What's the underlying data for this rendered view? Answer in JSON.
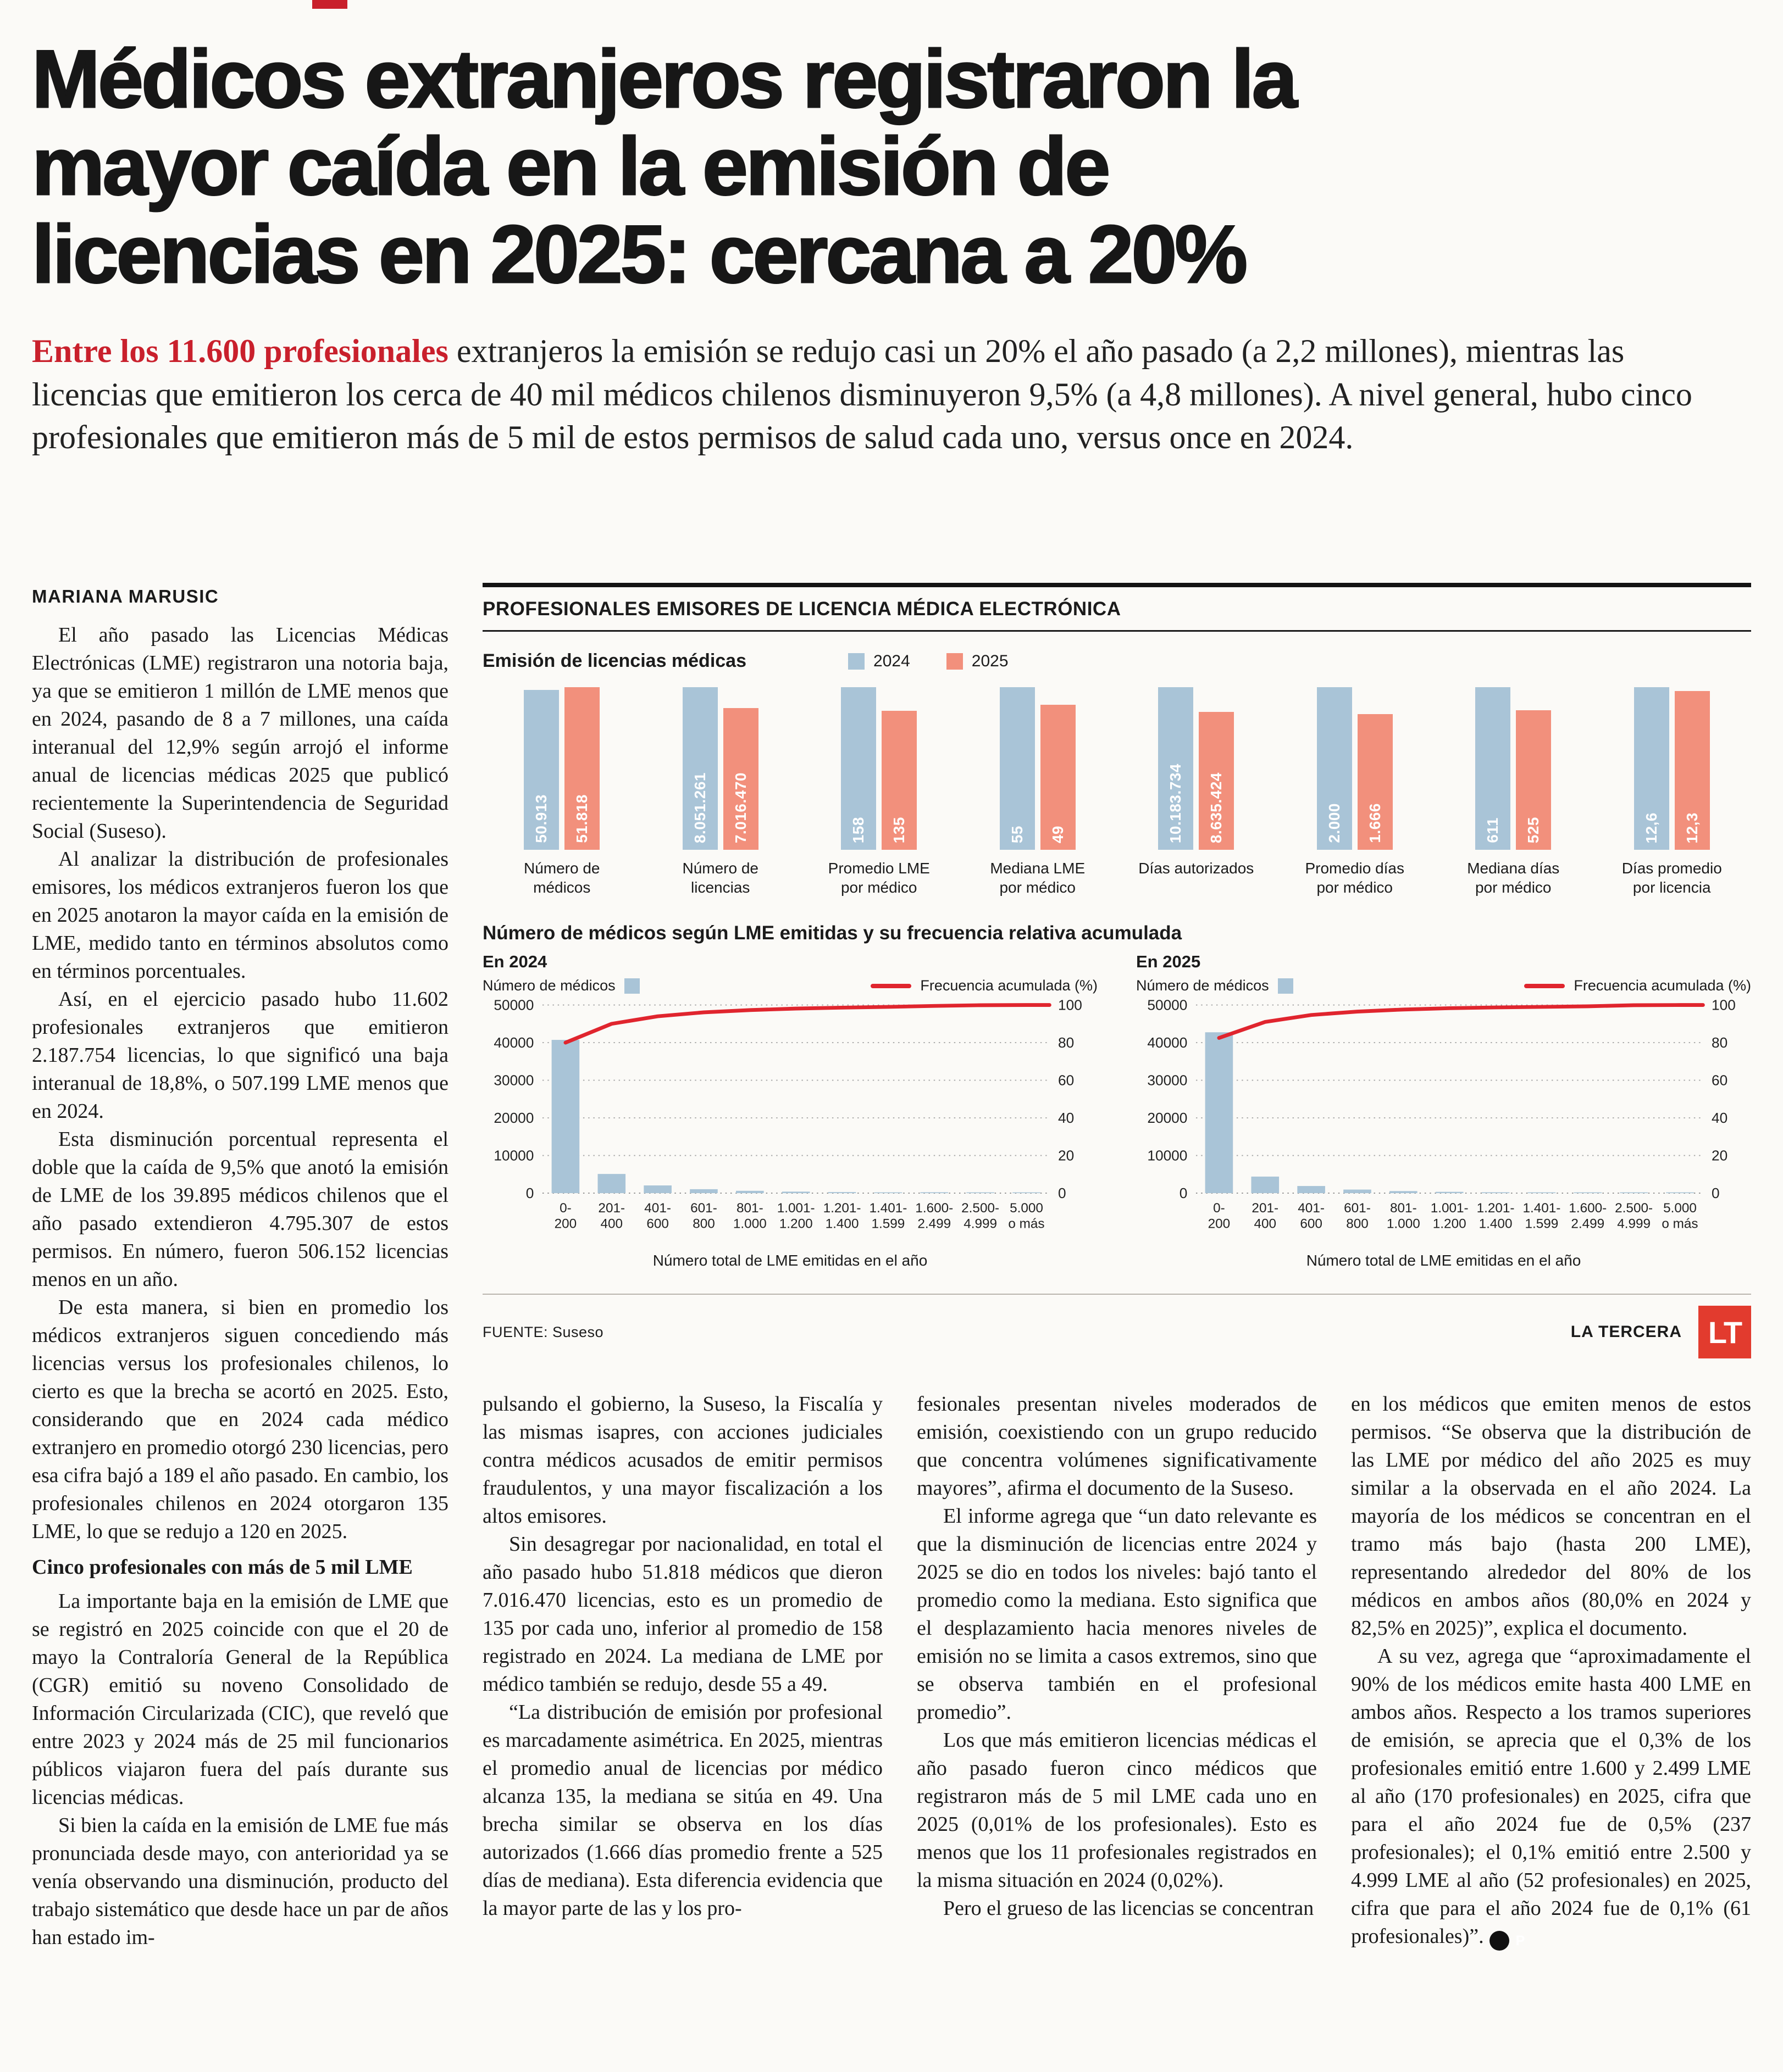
{
  "page": {
    "headline": "Médicos extranjeros registraron la mayor caída en la emisión de licencias en 2025: cercana a 20%",
    "lead_highlight": "Entre los 11.600 profesionales",
    "lead_rest": " extranjeros la emisión se redujo casi un 20% el año pasado (a 2,2 millones), mientras las licencias que emitieron los cerca de 40 mil médicos chilenos disminuyeron 9,5% (a 4,8 millones). A nivel general, hubo cinco profesionales que emitieron más de 5 mil de estos permisos de salud cada uno, versus once en 2024.",
    "byline": "MARIANA MARUSIC"
  },
  "article": {
    "col1": [
      "El año pasado las Licencias Médicas Electrónicas (LME) registraron una notoria baja, ya que se emitieron 1 millón de LME menos que en 2024, pasando de 8 a 7 millones, una caída interanual del 12,9% según arrojó el informe anual de licencias médicas 2025 que publicó recientemente la Superintendencia de Seguridad Social (Suseso).",
      "Al analizar la distribución de profesionales emisores, los médicos extranjeros fueron los que en 2025 anotaron la mayor caída en la emisión de LME, medido tanto en términos absolutos como en términos porcentuales.",
      "Así, en el ejercicio pasado hubo 11.602 profesionales extranjeros que emitieron 2.187.754 licencias, lo que significó una baja interanual de 18,8%, o 507.199 LME menos que en 2024.",
      "Esta disminución porcentual representa el doble que la caída de 9,5% que anotó la emisión de LME de los 39.895 médicos chilenos que el año pasado extendieron 4.795.307 de estos permisos. En número, fueron 506.152 licencias menos en un año.",
      "De esta manera, si bien en promedio los médicos extranjeros siguen concediendo más licencias versus los profesionales chilenos, lo cierto es que la brecha se acortó en 2025. Esto, considerando que en 2024 cada médico extranjero en promedio otorgó 230 licencias, pero esa cifra bajó a 189 el año pasado. En cambio, los profesionales chilenos en 2024 otorgaron 135 LME, lo que se redujo a 120 en 2025.",
      {
        "subhead": true,
        "text": "Cinco profesionales con más de 5 mil LME"
      },
      "La importante baja en la emisión de LME que se registró en 2025 coincide con que el 20 de mayo la Contraloría General de la República (CGR) emitió su noveno Consolidado de Información Circularizada (CIC), que reveló que entre 2023 y 2024 más de 25 mil funcionarios públicos viajaron fuera del país durante sus licencias médicas.",
      "Si bien la caída en la emisión de LME fue más pronunciada desde mayo, con anterioridad ya se venía observando una disminución, producto del trabajo sistemático que desde hace un par de años han estado im-"
    ],
    "col2": [
      {
        "noindent": true,
        "text": "pulsando el gobierno, la Suseso, la Fiscalía y las mismas isapres, con acciones judiciales contra médicos acusados de emitir permisos fraudulentos, y una mayor fiscalización a los altos emisores."
      },
      "Sin desagregar por nacionalidad, en total el año pasado hubo 51.818 médicos que dieron 7.016.470 licencias, esto es un promedio de 135 por cada uno, inferior al promedio de 158 registrado en 2024. La mediana de LME por médico también se redujo, desde 55 a 49.",
      "“La distribución de emisión por profesional es marcadamente asimétrica. En 2025, mientras el promedio anual de licencias por médico alcanza 135, la mediana se sitúa en 49. Una brecha similar se observa en los días autorizados (1.666 días promedio frente a 525 días de mediana). Esta diferencia evidencia que la mayor parte de las y los pro-"
    ],
    "col3": [
      {
        "noindent": true,
        "text": "fesionales presentan niveles moderados de emisión, coexistiendo con un grupo reducido que concentra volúmenes significativamente mayores”, afirma el documento de la Suseso."
      },
      "El informe agrega que “un dato relevante es que la disminución de licencias entre 2024 y 2025 se dio en todos los niveles: bajó tanto el promedio como la mediana. Esto significa que el desplazamiento hacia menores niveles de emisión no se limita a casos extremos, sino que se observa también en el profesional promedio”.",
      "Los que más emitieron licencias médicas el año pasado fueron cinco médicos que registraron más de 5 mil LME cada uno en 2025 (0,01% de los profesionales). Esto es menos que los 11 profesionales registrados en la misma situación en 2024 (0,02%).",
      "Pero el grueso de las licencias se concentran"
    ],
    "col4": [
      {
        "noindent": true,
        "text": "en los médicos que emiten menos de estos permisos. “Se observa que la distribución de las LME por médico del año 2025 es muy similar a la observada en el año 2024. La mayoría de los médicos se concentran en el tramo más bajo (hasta 200 LME), representando alrededor del 80% de los médicos en ambos años (80,0% en 2024 y 82,5% en 2025)”, explica el documento."
      },
      {
        "end_mark": "P",
        "text": "A su vez, agrega que “aproximadamente el 90% de los médicos emite hasta 400 LME en ambos años. Respecto a los tramos superiores de emisión, se aprecia que el 0,3% de los profesionales emitió entre 1.600 y 2.499 LME al año (170 profesionales) en 2025, cifra que para el año 2024 fue de 0,5% (237 profesionales); el 0,1% emitió entre 2.500 y 4.999 LME al año (52 profesionales) en 2025, cifra que para el año 2024 fue de 0,1% (61 profesionales)”."
      }
    ]
  },
  "infographic": {
    "title": "PROFESIONALES EMISORES DE LICENCIA MÉDICA ELECTRÓNICA",
    "pareto_title": "Número de médicos según LME emitidas y su frecuencia relativa acumulada",
    "source": "FUENTE: Suseso",
    "brand": "LA TERCERA",
    "logo": "LT",
    "colors": {
      "bar_2024": "#a9c4d7",
      "bar_2025": "#f2907c",
      "line": "#e0252e",
      "accent_red": "#c9202c",
      "logo_red": "#e23b2e"
    }
  },
  "chart_data": [
    {
      "type": "bar",
      "title": "Emisión de licencias médicas",
      "legend": [
        "2024",
        "2025"
      ],
      "groups": [
        {
          "label": [
            "Número de",
            "médicos"
          ],
          "v2024": 50913,
          "v2025": 51818,
          "d2024": "50.913",
          "d2025": "51.818"
        },
        {
          "label": [
            "Número de",
            "licencias"
          ],
          "v2024": 8051261,
          "v2025": 7016470,
          "d2024": "8.051.261",
          "d2025": "7.016.470"
        },
        {
          "label": [
            "Promedio LME",
            "por médico"
          ],
          "v2024": 158,
          "v2025": 135,
          "d2024": "158",
          "d2025": "135"
        },
        {
          "label": [
            "Mediana LME",
            "por médico"
          ],
          "v2024": 55,
          "v2025": 49,
          "d2024": "55",
          "d2025": "49"
        },
        {
          "label": [
            "Días autorizados"
          ],
          "v2024": 10183734,
          "v2025": 8635424,
          "d2024": "10.183.734",
          "d2025": "8.635.424"
        },
        {
          "label": [
            "Promedio días",
            "por médico"
          ],
          "v2024": 2000,
          "v2025": 1666,
          "d2024": "2.000",
          "d2025": "1.666"
        },
        {
          "label": [
            "Mediana días",
            "por médico"
          ],
          "v2024": 611,
          "v2025": 525,
          "d2024": "611",
          "d2025": "525"
        },
        {
          "label": [
            "Días promedio",
            "por licencia"
          ],
          "v2024": 12.6,
          "v2025": 12.3,
          "d2024": "12,6",
          "d2025": "12,3"
        }
      ]
    },
    {
      "type": "pareto",
      "title": "En 2024",
      "bar_legend": "Número de médicos",
      "line_legend": "Frecuencia acumulada (%)",
      "xlabel": "Número total de LME emitidas en el año",
      "categories": [
        [
          "0-",
          "200"
        ],
        [
          "201-",
          "400"
        ],
        [
          "401-",
          "600"
        ],
        [
          "601-",
          "800"
        ],
        [
          "801-",
          "1.000"
        ],
        [
          "1.001-",
          "1.200"
        ],
        [
          "1.201-",
          "1.400"
        ],
        [
          "1.401-",
          "1.599"
        ],
        [
          "1.600-",
          "2.499"
        ],
        [
          "2.500-",
          "4.999"
        ],
        [
          "5.000",
          "o más"
        ]
      ],
      "bars": [
        40730,
        5100,
        2050,
        1050,
        620,
        400,
        280,
        200,
        237,
        61,
        11
      ],
      "cumulative": [
        80.0,
        90.0,
        94.0,
        96.1,
        97.3,
        98.1,
        98.6,
        99.0,
        99.5,
        99.9,
        100
      ],
      "ylim": [
        0,
        50000
      ],
      "y2lim": [
        0,
        100
      ],
      "yticks": [
        0,
        10000,
        20000,
        30000,
        40000,
        50000
      ],
      "y2ticks": [
        0,
        20,
        40,
        60,
        80,
        100
      ]
    },
    {
      "type": "pareto",
      "title": "En 2025",
      "bar_legend": "Número de médicos",
      "line_legend": "Frecuencia acumulada (%)",
      "xlabel": "Número total de LME emitidas en el año",
      "categories": [
        [
          "0-",
          "200"
        ],
        [
          "201-",
          "400"
        ],
        [
          "401-",
          "600"
        ],
        [
          "601-",
          "800"
        ],
        [
          "801-",
          "1.000"
        ],
        [
          "1.001-",
          "1.200"
        ],
        [
          "1.201-",
          "1.400"
        ],
        [
          "1.401-",
          "1.599"
        ],
        [
          "1.600-",
          "2.499"
        ],
        [
          "2.500-",
          "4.999"
        ],
        [
          "5.000",
          "o más"
        ]
      ],
      "bars": [
        42750,
        4400,
        1900,
        950,
        550,
        350,
        230,
        160,
        170,
        52,
        5
      ],
      "cumulative": [
        82.5,
        91.0,
        94.7,
        96.5,
        97.6,
        98.3,
        98.7,
        99.0,
        99.3,
        99.9,
        100
      ],
      "ylim": [
        0,
        50000
      ],
      "y2lim": [
        0,
        100
      ],
      "yticks": [
        0,
        10000,
        20000,
        30000,
        40000,
        50000
      ],
      "y2ticks": [
        0,
        20,
        40,
        60,
        80,
        100
      ]
    }
  ]
}
